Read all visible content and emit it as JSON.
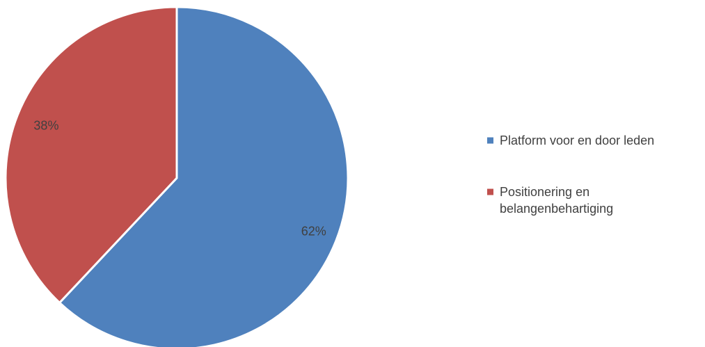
{
  "chart_data": {
    "type": "pie",
    "slices": [
      {
        "label": "Platform voor en door leden",
        "value": 62,
        "data_label": "62%",
        "color": "#4f81bd",
        "legend_lines": [
          "Platform voor en door leden"
        ]
      },
      {
        "label": "Positionering en belangenbehartiging",
        "value": 38,
        "data_label": "38%",
        "color": "#c0504d",
        "legend_lines": [
          "Positionering en",
          "belangenbehartiging"
        ]
      }
    ],
    "start_angle": "12 o'clock",
    "direction": "clockwise",
    "legend_position": "right"
  }
}
